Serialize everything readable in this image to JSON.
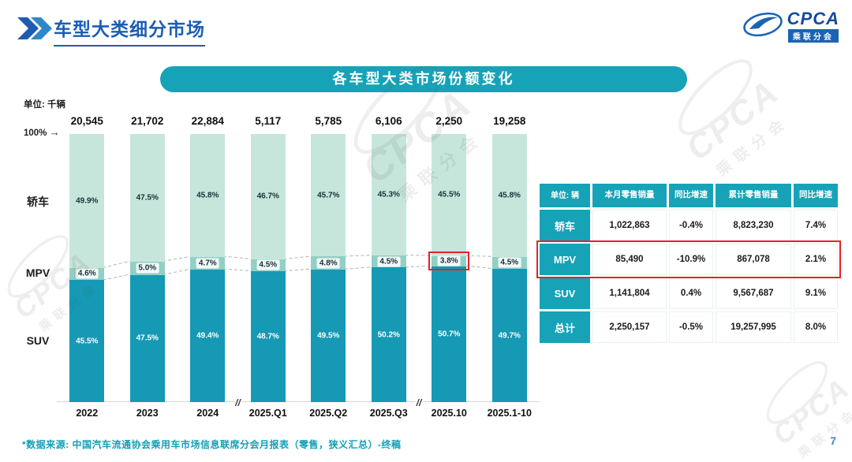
{
  "page": {
    "title": "车型大类细分市场",
    "banner": "各车型大类市场份额变化",
    "unit_label": "单位: 千辆",
    "axis_100": "100%",
    "source": "*数据来源: 中国汽车流通协会乘用车市场信息联席分会月报表（零售，狭义汇总）-终稿",
    "page_number": "7"
  },
  "icons": {
    "axis_arrow": "→",
    "axis_break": "//"
  },
  "logo": {
    "text": "CPCA",
    "subtext": "乘联分会"
  },
  "watermark": {
    "text": "CPCA",
    "subtext": "乘联分会"
  },
  "chart_data": {
    "type": "bar",
    "stacked": true,
    "unit": "千辆",
    "categories": [
      "2022",
      "2023",
      "2024",
      "2025.Q1",
      "2025.Q2",
      "2025.Q3",
      "2025.10",
      "2025.1-10"
    ],
    "totals": [
      "20,545",
      "21,702",
      "22,884",
      "5,117",
      "5,785",
      "6,106",
      "2,250",
      "19,258"
    ],
    "series": [
      {
        "name": "轿车",
        "values": [
          49.9,
          47.5,
          45.8,
          46.7,
          45.7,
          45.3,
          45.5,
          45.8
        ],
        "color": "#c7e6db"
      },
      {
        "name": "MPV",
        "values": [
          4.6,
          5.0,
          4.7,
          4.5,
          4.8,
          4.5,
          3.8,
          4.5
        ],
        "color": "#92cfc5"
      },
      {
        "name": "SUV",
        "values": [
          45.5,
          47.5,
          49.4,
          48.7,
          49.5,
          50.2,
          50.7,
          49.7
        ],
        "color": "#1599b4"
      }
    ],
    "ylim": [
      0,
      100
    ],
    "legend_position": "left-of-bars",
    "grid": false,
    "axis_breaks_after": [
      2,
      5
    ],
    "highlight": {
      "category": "2025.10",
      "series": "MPV",
      "color": "#e8202a"
    }
  },
  "table": {
    "headers": [
      "单位: 辆",
      "本月零售销量",
      "同比增速",
      "累计零售销量",
      "同比增速"
    ],
    "rows": [
      {
        "label": "轿车",
        "cells": [
          "1,022,863",
          "-0.4%",
          "8,823,230",
          "7.4%"
        ],
        "highlight": false
      },
      {
        "label": "MPV",
        "cells": [
          "85,490",
          "-10.9%",
          "867,078",
          "2.1%"
        ],
        "highlight": true
      },
      {
        "label": "SUV",
        "cells": [
          "1,141,804",
          "0.4%",
          "9,567,687",
          "9.1%"
        ],
        "highlight": false
      },
      {
        "label": "总计",
        "cells": [
          "2,250,157",
          "-0.5%",
          "19,257,995",
          "8.0%"
        ],
        "highlight": false
      }
    ],
    "accent_color": "#16a3b8"
  }
}
